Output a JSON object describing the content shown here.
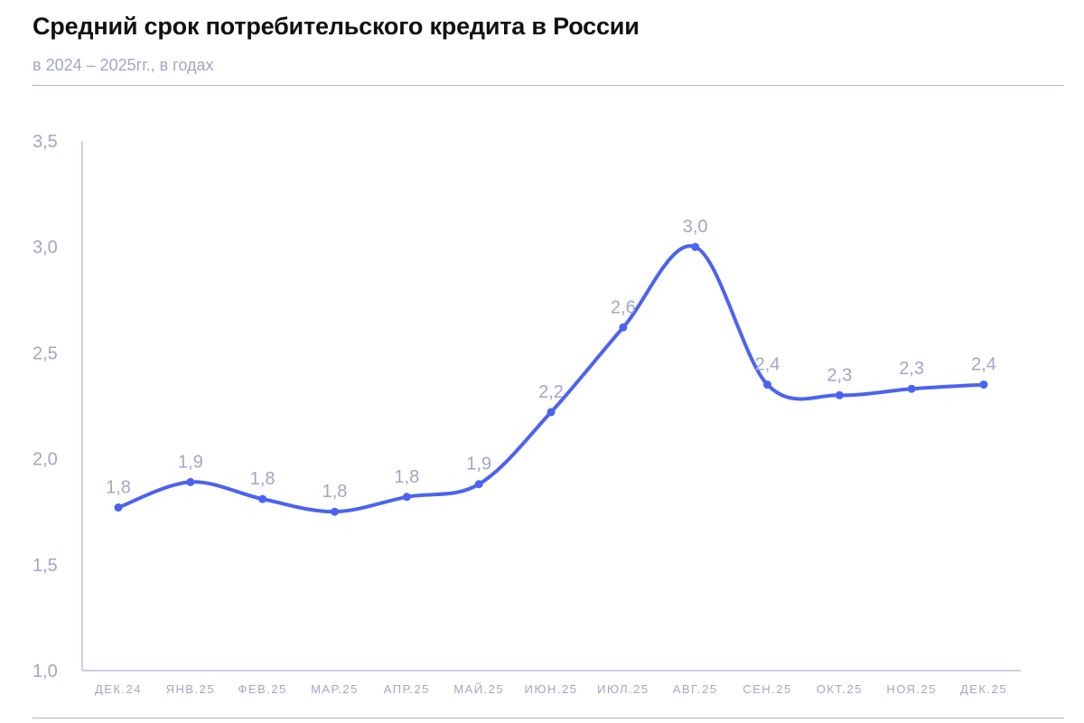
{
  "chart_data": {
    "type": "line",
    "title": "Средний срок потребительского кредита в России",
    "subtitle": "в 2024 – 2025гг., в годах",
    "xlabel": "",
    "ylabel": "",
    "ylim": [
      1.0,
      3.5
    ],
    "yticks": [
      "1,0",
      "1,5",
      "2,0",
      "2,5",
      "3,0",
      "3,5"
    ],
    "ytick_values": [
      1.0,
      1.5,
      2.0,
      2.5,
      3.0,
      3.5
    ],
    "categories": [
      "ДЕК.24",
      "ЯНВ.25",
      "ФЕВ.25",
      "МАР.25",
      "АПР.25",
      "МАЙ.25",
      "ИЮН.25",
      "ИЮЛ.25",
      "АВГ.25",
      "СЕН.25",
      "ОКТ.25",
      "НОЯ.25",
      "ДЕК.25"
    ],
    "values": [
      1.77,
      1.89,
      1.81,
      1.75,
      1.82,
      1.88,
      2.22,
      2.62,
      3.0,
      2.35,
      2.3,
      2.33,
      2.35
    ],
    "data_labels": [
      "1,8",
      "1,9",
      "1,8",
      "1,8",
      "1,8",
      "1,9",
      "2,2",
      "2,6",
      "3,0",
      "2,4",
      "2,3",
      "2,3",
      "2,4"
    ],
    "grid": false,
    "legend": "none",
    "line_color": "#4b63f0",
    "axis_color": "#aeb0d4",
    "label_color": "#a3a6c4"
  }
}
